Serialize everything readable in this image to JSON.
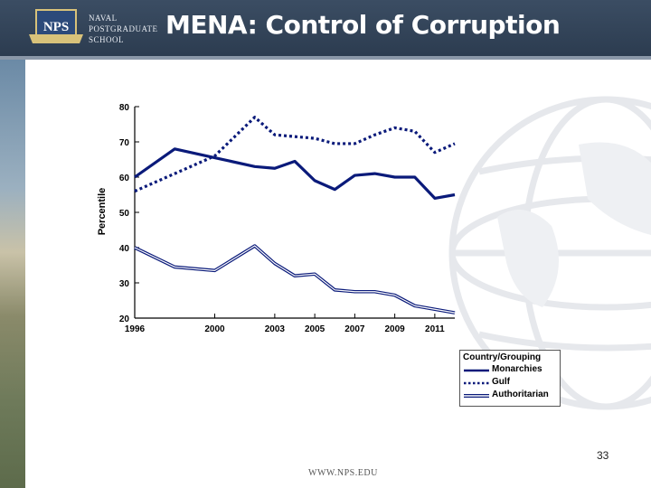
{
  "header": {
    "school_name_lines": [
      "NAVAL",
      "POSTGRADUATE",
      "SCHOOL"
    ],
    "emblem_text": "NPS",
    "title": "MENA: Control of Corruption"
  },
  "chart_data": {
    "type": "line",
    "title": "MENA: Control of Corruption",
    "xlabel": "",
    "ylabel": "Percentile",
    "x": [
      1996,
      1998,
      2000,
      2002,
      2003,
      2004,
      2005,
      2006,
      2007,
      2008,
      2009,
      2010,
      2011,
      2012
    ],
    "x_ticks": [
      "1996",
      "2000",
      "2003",
      "2005",
      "2007",
      "2009",
      "2011"
    ],
    "ylim": [
      20,
      80
    ],
    "y_ticks": [
      20,
      30,
      40,
      50,
      60,
      70,
      80
    ],
    "series": [
      {
        "name": "Monarchies",
        "style": "solid",
        "color": "#0a1a7a",
        "values": [
          60,
          68,
          65.5,
          63,
          62.5,
          64.5,
          59,
          56.5,
          60.5,
          61,
          60,
          60,
          54,
          55
        ]
      },
      {
        "name": "Gulf",
        "style": "dotted",
        "color": "#0a1a7a",
        "values": [
          56,
          61,
          66,
          77,
          72,
          71.5,
          71,
          69.5,
          69.5,
          72,
          74,
          73,
          67,
          69.5
        ]
      },
      {
        "name": "Authoritarian",
        "style": "double",
        "color": "#0a1a7a",
        "values": [
          40,
          34.5,
          33.5,
          40.5,
          35.5,
          32,
          32.5,
          28,
          27.5,
          27.5,
          26.5,
          23.5,
          22.5,
          21.5
        ]
      }
    ],
    "legend": {
      "title": "Country/Grouping",
      "placement": "bottom-right"
    },
    "grid": false
  },
  "page_number": "33",
  "footer_url": "WWW.NPS.EDU"
}
